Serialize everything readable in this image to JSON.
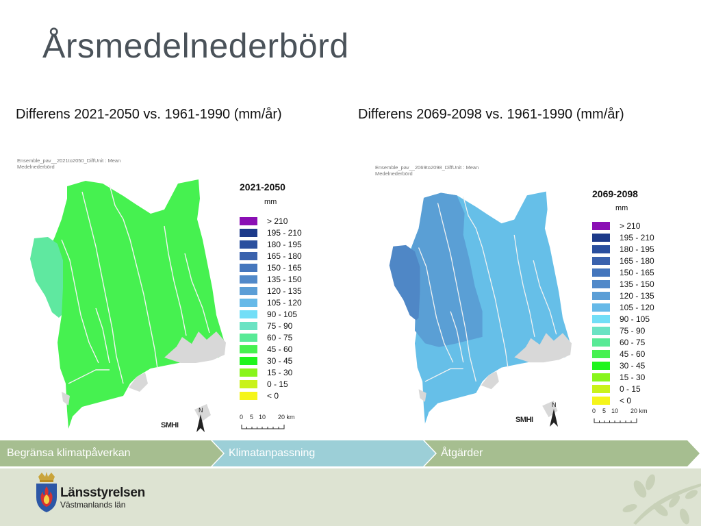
{
  "slide": {
    "title": "Årsmedelnederbörd"
  },
  "panels": [
    {
      "subtitle": "Differens 2021-2050 vs. 1961-1990 (mm/år)",
      "meta_line1": "Ensemble_pav__2021to2050_DiffUnit : Mean",
      "meta_line2": "Medelnederbörd",
      "legend_title": "2021-2050",
      "fill_color": "#46f150"
    },
    {
      "subtitle": "Differens 2069-2098 vs. 1961-1990 (mm/år)",
      "meta_line1": "Ensemble_pav__2069to2098_DiffUnit : Mean",
      "meta_line2": "Medelnederbörd",
      "legend_title": "2069-2098",
      "fill_color": "#66bfe8"
    }
  ],
  "legend": {
    "unit": "mm",
    "classes": [
      {
        "label": "> 210",
        "color": "#8a0fb4"
      },
      {
        "label": "195 - 210",
        "color": "#1d3a8a"
      },
      {
        "label": "180 - 195",
        "color": "#2a4f9e"
      },
      {
        "label": "165 - 180",
        "color": "#3a62ad"
      },
      {
        "label": "150 - 165",
        "color": "#4476bd"
      },
      {
        "label": "135 - 150",
        "color": "#5189c9"
      },
      {
        "label": "120 - 135",
        "color": "#5b9ed6"
      },
      {
        "label": "105 - 120",
        "color": "#66b9e8"
      },
      {
        "label": "90 - 105",
        "color": "#72def7"
      },
      {
        "label": "75 - 90",
        "color": "#6be3c3"
      },
      {
        "label": "60 - 75",
        "color": "#58ea96"
      },
      {
        "label": "45 - 60",
        "color": "#46f150"
      },
      {
        "label": "30 - 45",
        "color": "#1ff51d"
      },
      {
        "label": "15 - 30",
        "color": "#88f51c"
      },
      {
        "label": "0 - 15",
        "color": "#c9f21a"
      },
      {
        "label": "< 0",
        "color": "#f5f51a"
      }
    ]
  },
  "map_extras": {
    "smhi": "SMHI",
    "north": "N",
    "scale_labels": [
      "0",
      "5",
      "10",
      "20 km"
    ]
  },
  "nav": {
    "items": [
      {
        "label": "Begränsa klimatpåverkan",
        "color": "#a6be90"
      },
      {
        "label": "Klimatanpassning",
        "color": "#9ccfd7"
      },
      {
        "label": "Åtgärder",
        "color": "#a6be90"
      }
    ]
  },
  "logo": {
    "name": "Länsstyrelsen",
    "sub": "Västmanlands län"
  },
  "colors": {
    "title": "#4a5259",
    "footer": "#dde3d2",
    "lake": "#d8d8d8",
    "river": "#f2f2f2"
  }
}
